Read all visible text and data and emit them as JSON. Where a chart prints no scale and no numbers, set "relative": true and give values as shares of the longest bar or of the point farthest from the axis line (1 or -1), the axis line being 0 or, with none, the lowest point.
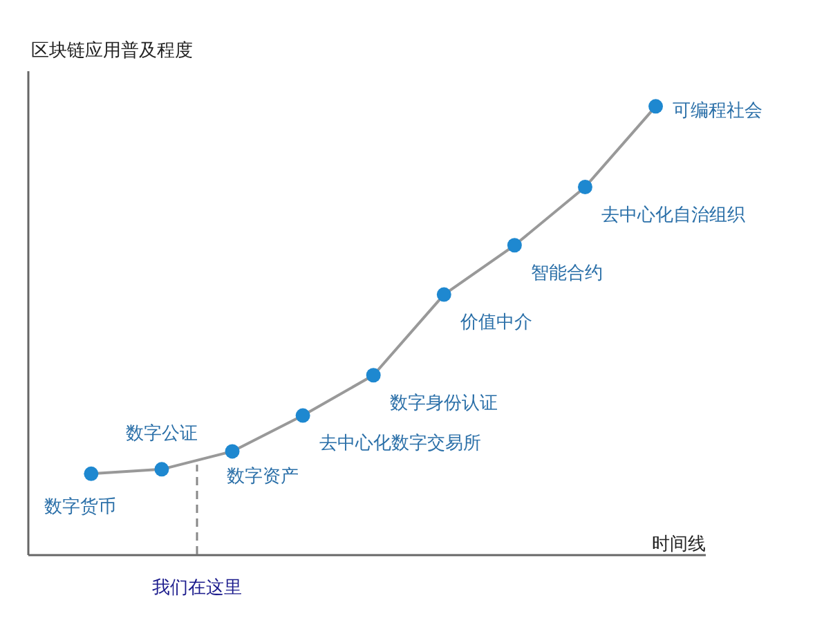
{
  "chart_data": {
    "type": "line",
    "xlabel": "时间线",
    "ylabel": "区块链应用普及程度",
    "relative": true,
    "tick_labels": false,
    "marker": "circle",
    "grid": false,
    "categories": [
      null,
      null,
      null,
      null,
      null,
      null,
      null,
      null,
      null
    ],
    "series": [
      {
        "color": "#999999",
        "values": [
          0.18,
          0.19,
          0.23,
          0.31,
          0.4,
          0.58,
          0.69,
          0.82,
          1.0
        ]
      }
    ],
    "annotations": [
      "数字货币",
      "数字公证",
      "数字资产",
      "去中心化数字交易所",
      "数字身份认证",
      "价值中介",
      "智能合约",
      "去中心化自治组织",
      "可编程社会",
      "我们在这里"
    ]
  }
}
